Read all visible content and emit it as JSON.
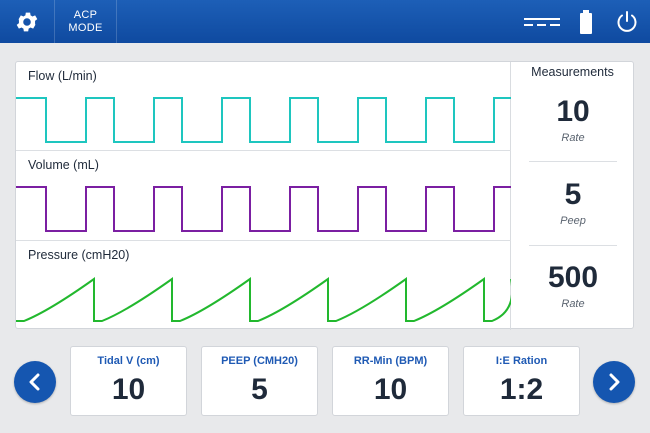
{
  "header": {
    "settings_icon": "gear-icon",
    "mode_line1": "ACP",
    "mode_line2": "MODE",
    "indicators": [
      "dc-power-icon",
      "battery-icon",
      "power-icon"
    ]
  },
  "waveforms": [
    {
      "label": "Flow (L/min)",
      "color": "#1ec6bf",
      "shape": "square"
    },
    {
      "label": "Volume (mL)",
      "color": "#7b1fa2",
      "shape": "square"
    },
    {
      "label": "Pressure (cmH20)",
      "color": "#22b82e",
      "shape": "sawtooth"
    }
  ],
  "measurements": {
    "title": "Measurements",
    "items": [
      {
        "value": "10",
        "label": "Rate"
      },
      {
        "value": "5",
        "label": "Peep"
      },
      {
        "value": "500",
        "label": "Rate"
      }
    ]
  },
  "controls": {
    "prev_icon": "chevron-left-icon",
    "next_icon": "chevron-right-icon",
    "settings": [
      {
        "label": "Tidal V (cm)",
        "value": "10"
      },
      {
        "label": "PEEP (CMH20)",
        "value": "5"
      },
      {
        "label": "RR-Min (BPM)",
        "value": "10"
      },
      {
        "label": "I:E Ration",
        "value": "1:2"
      }
    ]
  },
  "colors": {
    "header_bg": "#1556b0",
    "accent": "#1556b0",
    "label_blue": "#1f5ab4"
  }
}
